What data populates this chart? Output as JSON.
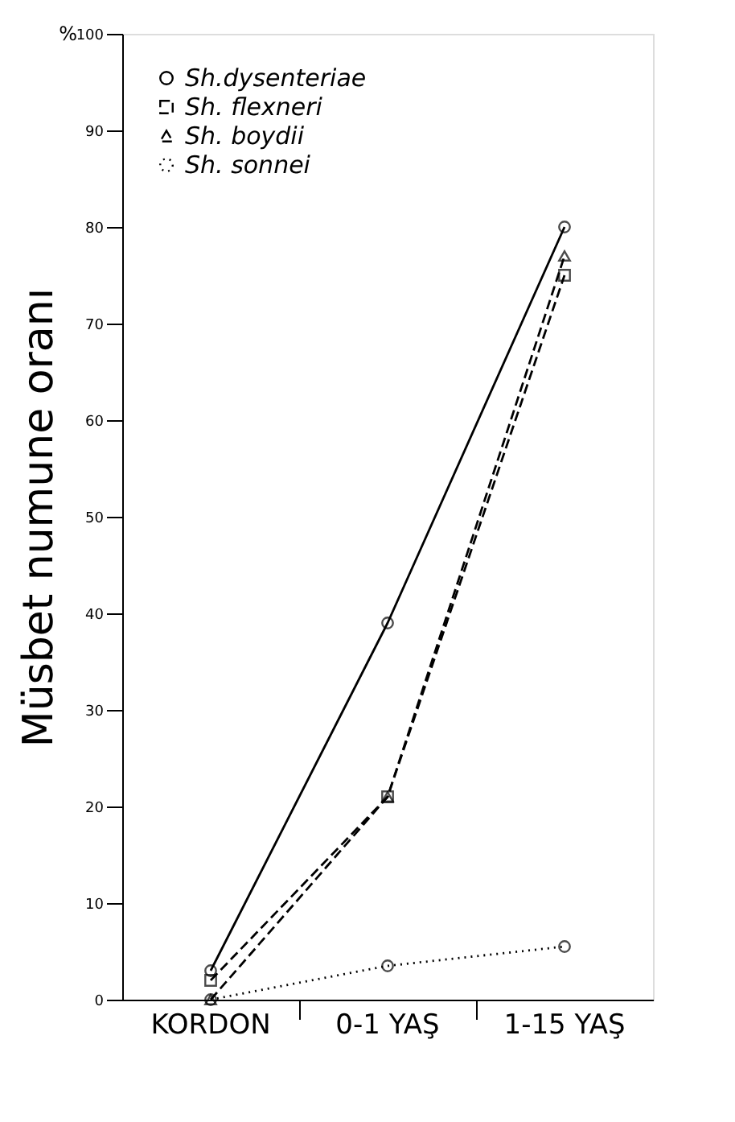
{
  "chart_data": {
    "type": "line",
    "ylabel": "Müsbet numune oranı",
    "categories": [
      "KORDON",
      "0-1 YAŞ",
      "1-15 YAŞ"
    ],
    "series": [
      {
        "name": "Sh.dysenteriae",
        "color": "#000000",
        "values": [
          3,
          39,
          80
        ],
        "marker": "circle",
        "line_style": "solid"
      },
      {
        "name": "Sh. flexneri",
        "color": "#000000",
        "values": [
          2,
          21,
          75
        ],
        "marker": "square",
        "line_style": "dashed"
      },
      {
        "name": "Sh. boydii",
        "color": "#000000",
        "values": [
          0,
          21,
          77
        ],
        "marker": "triangle",
        "line_style": "dashed"
      },
      {
        "name": "Sh. sonnei",
        "color": "#000000",
        "values": [
          0,
          3.5,
          5.5
        ],
        "marker": "circle",
        "line_style": "dotted"
      }
    ],
    "ylim": [
      0,
      100
    ],
    "yticks": [
      0,
      10,
      20,
      30,
      40,
      50,
      60,
      70,
      80,
      90,
      100
    ],
    "annotations": [
      "%"
    ],
    "legend": "top left",
    "grid": false
  }
}
